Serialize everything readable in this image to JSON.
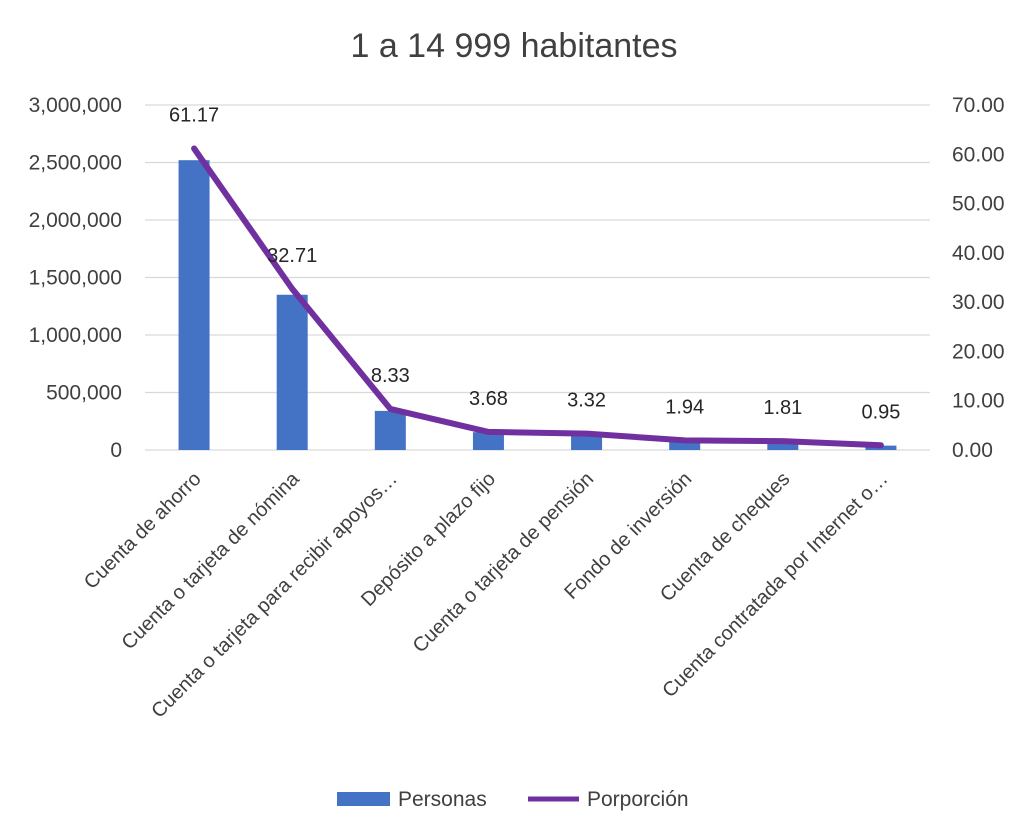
{
  "chart_data": {
    "type": "bar-line-combo",
    "title": "1 a 14 999 habitantes",
    "categories": [
      "Cuenta de ahorro",
      "Cuenta o tarjeta de nómina",
      "Cuenta o tarjeta para recibir apoyos…",
      "Depósito a plazo fijo",
      "Cuenta o tarjeta de pensión",
      "Fondo de inversión",
      "Cuenta de cheques",
      "Cuenta contratada por Internet o…"
    ],
    "series": [
      {
        "name": "Personas",
        "type": "bar",
        "axis": "left",
        "color": "#4472C4",
        "values": [
          2520000,
          1350000,
          340000,
          155000,
          140000,
          80000,
          75000,
          38000
        ]
      },
      {
        "name": "Porporción",
        "type": "line",
        "axis": "right",
        "color": "#7030A0",
        "values": [
          61.17,
          32.71,
          8.33,
          3.68,
          3.32,
          1.94,
          1.81,
          0.95
        ],
        "data_labels": [
          "61.17",
          "32.71",
          "8.33",
          "3.68",
          "3.32",
          "1.94",
          "1.81",
          "0.95"
        ]
      }
    ],
    "y_left": {
      "min": 0,
      "max": 3000000,
      "ticks": [
        0,
        500000,
        1000000,
        1500000,
        2000000,
        2500000,
        3000000
      ],
      "tick_labels": [
        "0",
        "500,000",
        "1,000,000",
        "1,500,000",
        "2,000,000",
        "2,500,000",
        "3,000,000"
      ]
    },
    "y_right": {
      "min": 0,
      "max": 70,
      "ticks": [
        0,
        10,
        20,
        30,
        40,
        50,
        60,
        70
      ],
      "tick_labels": [
        "0.00",
        "10.00",
        "20.00",
        "30.00",
        "40.00",
        "50.00",
        "60.00",
        "70.00"
      ]
    },
    "grid": true,
    "legend": {
      "position": "bottom",
      "entries": [
        "Personas",
        "Porporción"
      ]
    },
    "colors": {
      "grid": "#D9D9D9",
      "text": "#404040"
    }
  }
}
